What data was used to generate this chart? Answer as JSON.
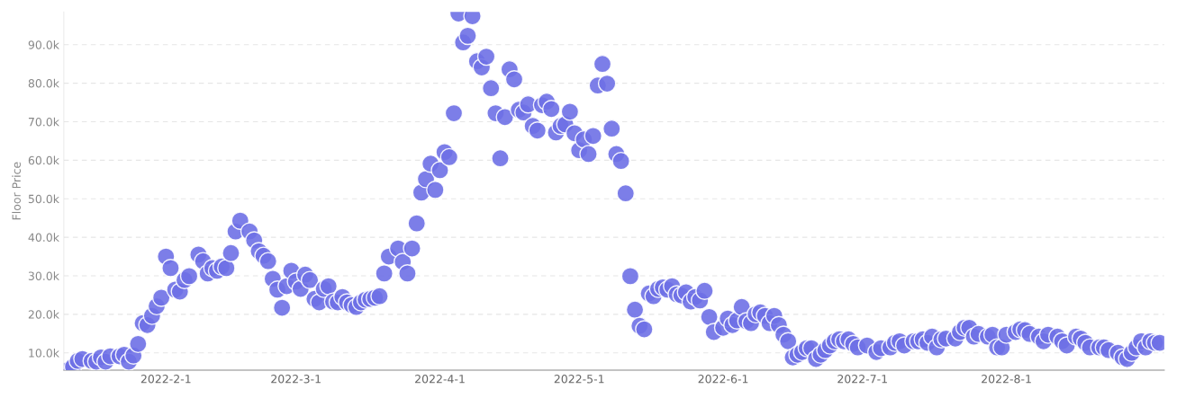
{
  "chart_data": {
    "type": "scatter",
    "ylabel": "Floor Price",
    "x": [
      "2022-01-11",
      "2022-01-12",
      "2022-01-13",
      "2022-01-14",
      "2022-01-16",
      "2022-01-17",
      "2022-01-18",
      "2022-01-19",
      "2022-01-20",
      "2022-01-22",
      "2022-01-23",
      "2022-01-24",
      "2022-01-25",
      "2022-01-26",
      "2022-01-27",
      "2022-01-28",
      "2022-01-29",
      "2022-01-30",
      "2022-01-31",
      "2022-02-01",
      "2022-02-02",
      "2022-02-03",
      "2022-02-04",
      "2022-02-05",
      "2022-02-06",
      "2022-02-08",
      "2022-02-09",
      "2022-02-10",
      "2022-02-11",
      "2022-02-12",
      "2022-02-13",
      "2022-02-14",
      "2022-02-15",
      "2022-02-16",
      "2022-02-17",
      "2022-02-19",
      "2022-02-20",
      "2022-02-21",
      "2022-02-22",
      "2022-02-23",
      "2022-02-24",
      "2022-02-25",
      "2022-02-26",
      "2022-02-27",
      "2022-02-28",
      "2022-03-01",
      "2022-03-02",
      "2022-03-03",
      "2022-03-04",
      "2022-03-05",
      "2022-03-06",
      "2022-03-07",
      "2022-03-08",
      "2022-03-09",
      "2022-03-10",
      "2022-03-11",
      "2022-03-12",
      "2022-03-13",
      "2022-03-14",
      "2022-03-15",
      "2022-03-16",
      "2022-03-17",
      "2022-03-18",
      "2022-03-19",
      "2022-03-20",
      "2022-03-21",
      "2022-03-23",
      "2022-03-24",
      "2022-03-25",
      "2022-03-26",
      "2022-03-27",
      "2022-03-28",
      "2022-03-29",
      "2022-03-30",
      "2022-03-31",
      "2022-04-01",
      "2022-04-02",
      "2022-04-03",
      "2022-04-04",
      "2022-04-05",
      "2022-04-06",
      "2022-04-07",
      "2022-04-08",
      "2022-04-09",
      "2022-04-10",
      "2022-04-11",
      "2022-04-12",
      "2022-04-13",
      "2022-04-14",
      "2022-04-15",
      "2022-04-16",
      "2022-04-17",
      "2022-04-18",
      "2022-04-19",
      "2022-04-20",
      "2022-04-21",
      "2022-04-22",
      "2022-04-23",
      "2022-04-24",
      "2022-04-25",
      "2022-04-26",
      "2022-04-27",
      "2022-04-28",
      "2022-04-29",
      "2022-04-30",
      "2022-05-01",
      "2022-05-02",
      "2022-05-03",
      "2022-05-04",
      "2022-05-05",
      "2022-05-06",
      "2022-05-07",
      "2022-05-08",
      "2022-05-09",
      "2022-05-10",
      "2022-05-11",
      "2022-05-12",
      "2022-05-13",
      "2022-05-14",
      "2022-05-15",
      "2022-05-16",
      "2022-05-17",
      "2022-05-18",
      "2022-05-19",
      "2022-05-20",
      "2022-05-21",
      "2022-05-22",
      "2022-05-23",
      "2022-05-24",
      "2022-05-25",
      "2022-05-26",
      "2022-05-27",
      "2022-05-28",
      "2022-05-29",
      "2022-05-30",
      "2022-06-01",
      "2022-06-02",
      "2022-06-03",
      "2022-06-04",
      "2022-06-05",
      "2022-06-06",
      "2022-06-07",
      "2022-06-08",
      "2022-06-09",
      "2022-06-10",
      "2022-06-11",
      "2022-06-12",
      "2022-06-13",
      "2022-06-14",
      "2022-06-15",
      "2022-06-16",
      "2022-06-17",
      "2022-06-18",
      "2022-06-19",
      "2022-06-20",
      "2022-06-21",
      "2022-06-22",
      "2022-06-23",
      "2022-06-24",
      "2022-06-25",
      "2022-06-26",
      "2022-06-27",
      "2022-06-28",
      "2022-06-29",
      "2022-06-30",
      "2022-07-02",
      "2022-07-04",
      "2022-07-05",
      "2022-07-07",
      "2022-07-08",
      "2022-07-09",
      "2022-07-10",
      "2022-07-12",
      "2022-07-13",
      "2022-07-14",
      "2022-07-15",
      "2022-07-16",
      "2022-07-17",
      "2022-07-18",
      "2022-07-19",
      "2022-07-21",
      "2022-07-22",
      "2022-07-23",
      "2022-07-24",
      "2022-07-25",
      "2022-07-26",
      "2022-07-28",
      "2022-07-29",
      "2022-07-30",
      "2022-07-31",
      "2022-08-01",
      "2022-08-03",
      "2022-08-04",
      "2022-08-05",
      "2022-08-06",
      "2022-08-08",
      "2022-08-09",
      "2022-08-10",
      "2022-08-12",
      "2022-08-13",
      "2022-08-14",
      "2022-08-16",
      "2022-08-17",
      "2022-08-18",
      "2022-08-19",
      "2022-08-21",
      "2022-08-22",
      "2022-08-23",
      "2022-08-25",
      "2022-08-26",
      "2022-08-27",
      "2022-08-28",
      "2022-08-29",
      "2022-08-30",
      "2022-08-31",
      "2022-09-01",
      "2022-09-02",
      "2022-09-03"
    ],
    "values": [
      5600,
      6400,
      7900,
      8400,
      7900,
      7700,
      8800,
      7700,
      9100,
      9100,
      9500,
      7700,
      9300,
      12300,
      17700,
      17200,
      19600,
      22100,
      24300,
      35000,
      32000,
      26400,
      25900,
      28900,
      29900,
      35500,
      33800,
      30600,
      32000,
      31300,
      32400,
      32000,
      35900,
      41500,
      44300,
      41500,
      39200,
      36400,
      35200,
      33800,
      29200,
      26400,
      21700,
      27300,
      31300,
      28500,
      26600,
      30300,
      28900,
      24000,
      23100,
      26600,
      27300,
      23300,
      23100,
      24500,
      23100,
      22400,
      21900,
      23100,
      23800,
      24000,
      24300,
      24700,
      30600,
      35000,
      37100,
      33600,
      30600,
      37100,
      43600,
      51600,
      55100,
      59100,
      52300,
      57400,
      62100,
      60800,
      72200,
      98100,
      90600,
      92300,
      97400,
      85700,
      84100,
      86900,
      78700,
      72200,
      60500,
      71200,
      83600,
      81000,
      73100,
      72400,
      74500,
      68900,
      67700,
      74300,
      75200,
      73300,
      67200,
      68900,
      69300,
      72600,
      67000,
      62600,
      65400,
      61600,
      66300,
      79400,
      85000,
      79900,
      68200,
      61600,
      59800,
      51400,
      29900,
      21200,
      17000,
      16100,
      25400,
      24700,
      26600,
      27000,
      26400,
      27300,
      25200,
      24900,
      25700,
      23300,
      24500,
      23600,
      26100,
      19300,
      15400,
      16500,
      18900,
      17200,
      18400,
      21900,
      18200,
      17700,
      20000,
      20500,
      19600,
      17700,
      19600,
      17200,
      14700,
      13000,
      8800,
      9500,
      10200,
      11200,
      11200,
      8400,
      9500,
      10700,
      11900,
      13000,
      13500,
      13000,
      13500,
      12300,
      11400,
      11900,
      10200,
      11200,
      11400,
      12600,
      13000,
      11900,
      13000,
      13000,
      13500,
      12600,
      14200,
      11400,
      13500,
      13700,
      13700,
      15400,
      16500,
      16500,
      14200,
      14900,
      14200,
      14700,
      11400,
      11400,
      14700,
      15400,
      16100,
      15900,
      14900,
      14200,
      13000,
      14700,
      14200,
      13000,
      11900,
      14200,
      13700,
      12600,
      11400,
      11400,
      11400,
      10700,
      10000,
      8800,
      8400,
      10000,
      11400,
      13000,
      11400,
      13000,
      12600,
      12600
    ],
    "color": "#6e70e6",
    "marker": "circle",
    "grid": "y",
    "xlim": [
      "2022-01-10",
      "2022-09-04"
    ],
    "xticks": [
      {
        "value": "2022-02-01",
        "label": "2022-2-1"
      },
      {
        "value": "2022-03-01",
        "label": "2022-3-1"
      },
      {
        "value": "2022-04-01",
        "label": "2022-4-1"
      },
      {
        "value": "2022-05-01",
        "label": "2022-5-1"
      },
      {
        "value": "2022-06-01",
        "label": "2022-6-1"
      },
      {
        "value": "2022-07-01",
        "label": "2022-7-1"
      },
      {
        "value": "2022-08-01",
        "label": "2022-8-1"
      }
    ],
    "ylim": [
      5500,
      98500
    ],
    "yticks": [
      {
        "value": 10000,
        "label": "10.0k"
      },
      {
        "value": 20000,
        "label": "20.0k"
      },
      {
        "value": 30000,
        "label": "30.0k"
      },
      {
        "value": 40000,
        "label": "40.0k"
      },
      {
        "value": 50000,
        "label": "50.0k"
      },
      {
        "value": 60000,
        "label": "60.0k"
      },
      {
        "value": 70000,
        "label": "70.0k"
      },
      {
        "value": 80000,
        "label": "80.0k"
      },
      {
        "value": 90000,
        "label": "90.0k"
      }
    ]
  }
}
